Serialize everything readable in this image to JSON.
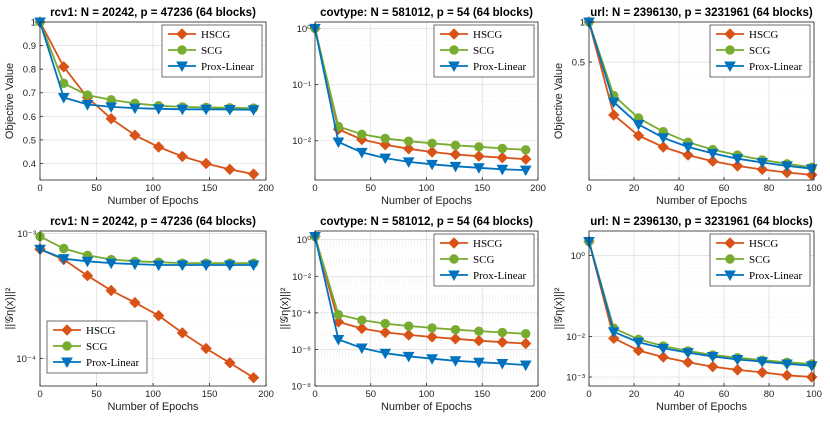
{
  "colors": {
    "HSCG": "#d95319",
    "SCG": "#77ac30",
    "Prox-Linear": "#0072bd"
  },
  "chart_data": [
    {
      "type": "line",
      "title": "rcv1: N = 20242, p = 47236 (64 blocks)",
      "xlabel": "Number of Epochs",
      "ylabel": "Objective Value",
      "yscale": "linear",
      "xlim": [
        0,
        200
      ],
      "ylim": [
        0.33,
        1.0
      ],
      "xticks": [
        0,
        50,
        100,
        150,
        200
      ],
      "xtick_labels": [
        "0",
        "50",
        "100",
        "150",
        "200"
      ],
      "yticks": [
        0.4,
        0.5,
        0.6,
        0.7,
        0.8,
        0.9,
        1.0
      ],
      "ytick_labels": [
        "0.4",
        "0.5",
        "0.6",
        "0.7",
        "0.8",
        "0.9",
        "1"
      ],
      "legend": "top-right",
      "x": [
        0,
        21,
        42,
        63,
        84,
        105,
        126,
        147,
        168,
        189
      ],
      "series": [
        {
          "name": "HSCG",
          "values": [
            1.0,
            0.81,
            0.68,
            0.59,
            0.52,
            0.47,
            0.43,
            0.4,
            0.375,
            0.355
          ],
          "marker": "diamond"
        },
        {
          "name": "SCG",
          "values": [
            1.0,
            0.74,
            0.69,
            0.67,
            0.655,
            0.645,
            0.64,
            0.638,
            0.636,
            0.635
          ],
          "marker": "circle"
        },
        {
          "name": "Prox-Linear",
          "values": [
            1.0,
            0.68,
            0.65,
            0.64,
            0.635,
            0.632,
            0.63,
            0.63,
            0.629,
            0.628
          ],
          "marker": "triangle"
        }
      ]
    },
    {
      "type": "line",
      "title": "covtype: N = 581012, p = 54 (64 blocks)",
      "xlabel": "Number of Epochs",
      "ylabel": "",
      "yscale": "log",
      "xlim": [
        0,
        200
      ],
      "ylim": [
        0.002,
        1.3
      ],
      "xticks": [
        0,
        50,
        100,
        150,
        200
      ],
      "xtick_labels": [
        "0",
        "50",
        "100",
        "150",
        "200"
      ],
      "yticks": [
        0.01,
        0.1,
        1
      ],
      "ytick_labels": [
        "10⁻²",
        "10⁻¹",
        "10⁰"
      ],
      "legend": "top-right",
      "x": [
        0,
        21,
        42,
        63,
        84,
        105,
        126,
        147,
        168,
        189
      ],
      "series": [
        {
          "name": "HSCG",
          "values": [
            1.0,
            0.016,
            0.0105,
            0.0085,
            0.0072,
            0.0063,
            0.0057,
            0.0053,
            0.005,
            0.0047
          ],
          "marker": "diamond"
        },
        {
          "name": "SCG",
          "values": [
            1.0,
            0.018,
            0.013,
            0.011,
            0.0098,
            0.009,
            0.0083,
            0.0078,
            0.0073,
            0.0069
          ],
          "marker": "circle"
        },
        {
          "name": "Prox-Linear",
          "values": [
            1.0,
            0.0095,
            0.0062,
            0.0049,
            0.0042,
            0.0038,
            0.0035,
            0.0033,
            0.0031,
            0.003
          ],
          "marker": "triangle"
        }
      ]
    },
    {
      "type": "line",
      "title": "url: N = 2396130, p = 3231961 (64 blocks)",
      "xlabel": "Number of Epochs",
      "ylabel": "Objective Value",
      "yscale": "log",
      "xlim": [
        0,
        100
      ],
      "ylim": [
        0.065,
        1.0
      ],
      "xticks": [
        0,
        20,
        40,
        60,
        80,
        100
      ],
      "xtick_labels": [
        "0",
        "20",
        "40",
        "60",
        "80",
        "100"
      ],
      "yticks": [
        0.5,
        1.0
      ],
      "ytick_labels": [
        "0.5",
        "1"
      ],
      "legend": "top-right",
      "x": [
        0,
        11,
        22,
        33,
        44,
        55,
        66,
        77,
        88,
        99
      ],
      "series": [
        {
          "name": "HSCG",
          "values": [
            1.0,
            0.2,
            0.14,
            0.115,
            0.1,
            0.09,
            0.083,
            0.078,
            0.074,
            0.071
          ],
          "marker": "diamond"
        },
        {
          "name": "SCG",
          "values": [
            1.0,
            0.28,
            0.19,
            0.15,
            0.125,
            0.11,
            0.1,
            0.092,
            0.086,
            0.081
          ],
          "marker": "circle"
        },
        {
          "name": "Prox-Linear",
          "values": [
            1.0,
            0.25,
            0.17,
            0.135,
            0.115,
            0.103,
            0.094,
            0.088,
            0.083,
            0.079
          ],
          "marker": "triangle"
        }
      ]
    },
    {
      "type": "line",
      "title": "rcv1: N = 20242, p = 47236 (64 blocks)",
      "xlabel": "Number of Epochs",
      "ylabel": "||𝒢η(x)||²",
      "yscale": "log",
      "xlim": [
        0,
        200
      ],
      "ylim": [
        6e-05,
        0.00105
      ],
      "xticks": [
        0,
        50,
        100,
        150,
        200
      ],
      "xtick_labels": [
        "0",
        "50",
        "100",
        "150",
        "200"
      ],
      "yticks": [
        0.0001,
        0.001
      ],
      "ytick_labels": [
        "10⁻⁴",
        "10⁻³"
      ],
      "legend": "bottom-left",
      "x": [
        0,
        21,
        42,
        63,
        84,
        105,
        126,
        147,
        168,
        189
      ],
      "series": [
        {
          "name": "HSCG",
          "values": [
            0.00075,
            0.00062,
            0.00046,
            0.00035,
            0.00028,
            0.00022,
            0.00016,
            0.00012,
            9.2e-05,
            7e-05
          ],
          "marker": "diamond"
        },
        {
          "name": "SCG",
          "values": [
            0.00095,
            0.00076,
            0.00067,
            0.00062,
            0.0006,
            0.00059,
            0.00058,
            0.00058,
            0.00058,
            0.00058
          ],
          "marker": "circle"
        },
        {
          "name": "Prox-Linear",
          "values": [
            0.00075,
            0.00063,
            0.0006,
            0.00058,
            0.00057,
            0.00056,
            0.00056,
            0.00056,
            0.00056,
            0.00056
          ],
          "marker": "triangle"
        }
      ]
    },
    {
      "type": "line",
      "title": "covtype: N = 581012, p = 54 (64 blocks)",
      "xlabel": "Number of Epochs",
      "ylabel": "||𝒢η(x)||²",
      "yscale": "log",
      "xlim": [
        0,
        200
      ],
      "ylim": [
        1e-08,
        3
      ],
      "xticks": [
        0,
        50,
        100,
        150,
        200
      ],
      "xtick_labels": [
        "0",
        "50",
        "100",
        "150",
        "200"
      ],
      "yticks": [
        1e-08,
        1e-06,
        0.0001,
        0.01,
        1
      ],
      "ytick_labels": [
        "10⁻⁸",
        "10⁻⁶",
        "10⁻⁴",
        "10⁻²",
        "10⁰"
      ],
      "legend": "top-right",
      "x": [
        0,
        21,
        42,
        63,
        84,
        105,
        126,
        147,
        168,
        189
      ],
      "series": [
        {
          "name": "HSCG",
          "values": [
            1.5,
            3.2e-05,
            1.4e-05,
            8.5e-06,
            6.2e-06,
            4.8e-06,
            3.8e-06,
            3e-06,
            2.5e-06,
            2.1e-06
          ],
          "marker": "diamond"
        },
        {
          "name": "SCG",
          "values": [
            1.5,
            8e-05,
            4e-05,
            2.6e-05,
            1.9e-05,
            1.5e-05,
            1.2e-05,
            1e-05,
            8.5e-06,
            7.2e-06
          ],
          "marker": "circle"
        },
        {
          "name": "Prox-Linear",
          "values": [
            1.5,
            3.5e-06,
            1.2e-06,
            6.2e-07,
            4.2e-07,
            3.1e-07,
            2.4e-07,
            2e-07,
            1.7e-07,
            1.4e-07
          ],
          "marker": "triangle"
        }
      ]
    },
    {
      "type": "line",
      "title": "url: N = 2396130, p = 3231961 (64 blocks)",
      "xlabel": "Number of Epochs",
      "ylabel": "||𝒢η(x)||²",
      "yscale": "log",
      "xlim": [
        0,
        100
      ],
      "ylim": [
        0.0006,
        4
      ],
      "xticks": [
        0,
        20,
        40,
        60,
        80,
        100
      ],
      "xtick_labels": [
        "0",
        "20",
        "40",
        "60",
        "80",
        "100"
      ],
      "yticks": [
        0.001,
        0.01,
        1
      ],
      "ytick_labels": [
        "10⁻³",
        "10⁻²",
        "10⁰"
      ],
      "legend": "top-right",
      "x": [
        0,
        11,
        22,
        33,
        44,
        55,
        66,
        77,
        88,
        99
      ],
      "series": [
        {
          "name": "HSCG",
          "values": [
            2.2,
            0.009,
            0.0045,
            0.0031,
            0.0023,
            0.0018,
            0.0015,
            0.0013,
            0.0011,
            0.001
          ],
          "marker": "diamond"
        },
        {
          "name": "SCG",
          "values": [
            2.2,
            0.016,
            0.0085,
            0.0058,
            0.0044,
            0.0035,
            0.003,
            0.0026,
            0.0023,
            0.0021
          ],
          "marker": "circle"
        },
        {
          "name": "Prox-Linear",
          "values": [
            2.2,
            0.013,
            0.0072,
            0.0051,
            0.004,
            0.0032,
            0.0027,
            0.0024,
            0.0021,
            0.0019
          ],
          "marker": "triangle"
        }
      ]
    }
  ]
}
